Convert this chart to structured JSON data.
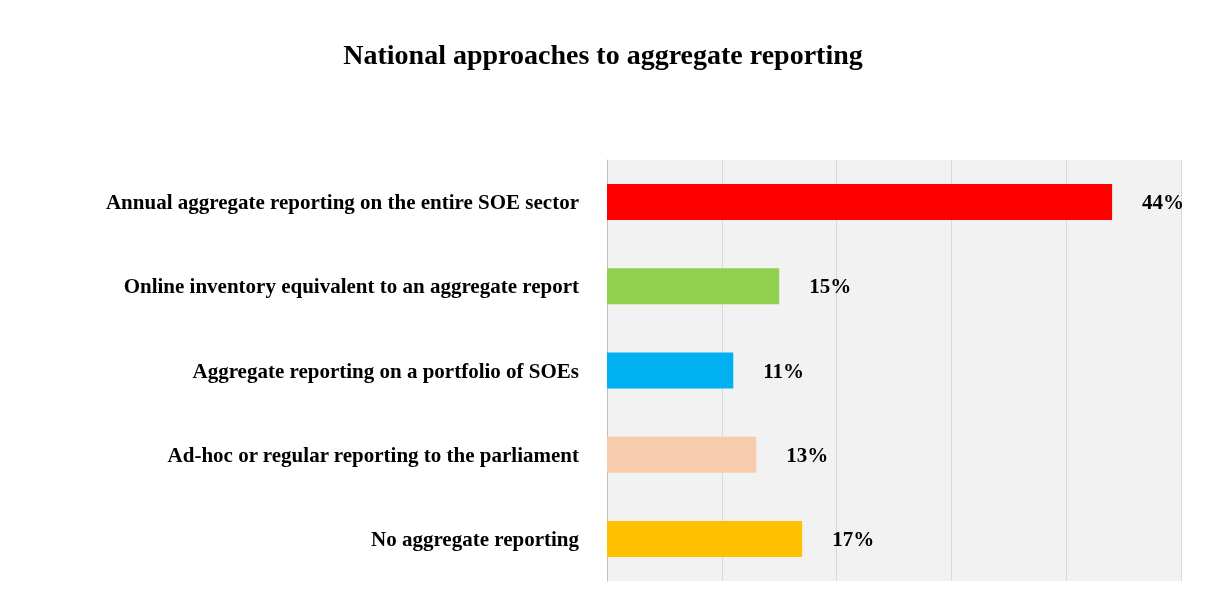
{
  "chart_data": {
    "type": "bar",
    "orientation": "horizontal",
    "title": "National approaches to aggregate reporting",
    "categories": [
      "Annual aggregate reporting on the entire SOE sector",
      "Online inventory equivalent to an aggregate report",
      "Aggregate reporting on a portfolio of SOEs",
      "Ad-hoc or regular reporting to the parliament",
      "No aggregate reporting"
    ],
    "values": [
      44,
      15,
      11,
      13,
      17
    ],
    "colors": [
      "#ff0000",
      "#92d050",
      "#00b0f0",
      "#f8cbad",
      "#ffc000"
    ],
    "value_labels": [
      "44%",
      "15%",
      "11%",
      "13%",
      "17%"
    ],
    "xlim": [
      0,
      50
    ],
    "xticks": [
      {
        "value": 0,
        "label": null
      },
      {
        "value": 10,
        "label": null
      },
      {
        "value": 20,
        "label": null
      },
      {
        "value": 30,
        "label": null
      },
      {
        "value": 40,
        "label": null
      },
      {
        "value": 50,
        "label": null
      }
    ],
    "grid": "x",
    "tick_labels": "y"
  }
}
